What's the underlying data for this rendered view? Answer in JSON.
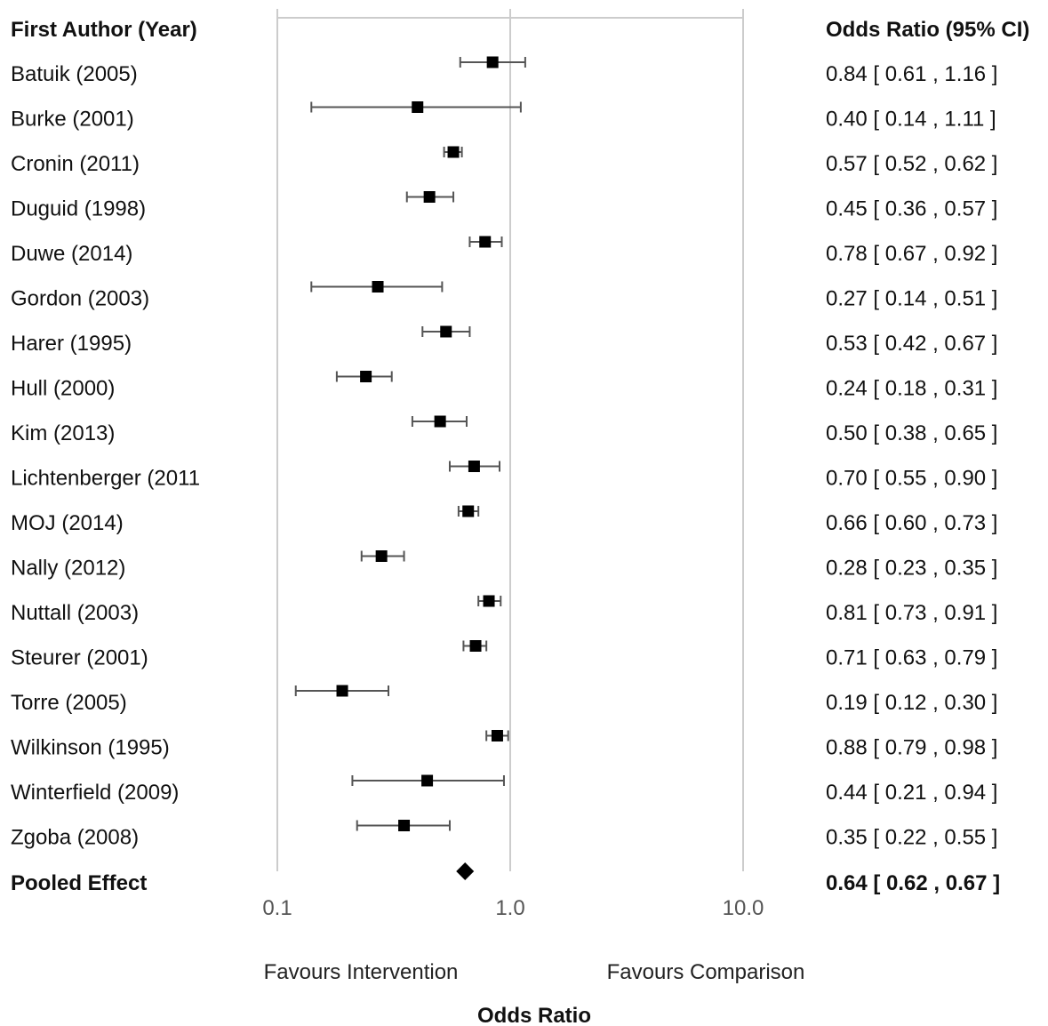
{
  "chart_data": {
    "type": "forest",
    "title": "",
    "xlabel": "Odds Ratio",
    "x_scale": "log",
    "xlim": [
      0.1,
      10.0
    ],
    "x_ticks": [
      "0.1",
      "1.0",
      "10.0"
    ],
    "reference_line": 1.0,
    "left_header": "First Author (Year)",
    "right_header": "Odds Ratio (95% CI)",
    "favours_left": "Favours Intervention",
    "favours_right": "Favours Comparison",
    "studies": [
      {
        "label": "Batuik (2005)",
        "or": 0.84,
        "lo": 0.61,
        "hi": 1.16,
        "ci_text": "0.84 [ 0.61 , 1.16 ]"
      },
      {
        "label": "Burke (2001)",
        "or": 0.4,
        "lo": 0.14,
        "hi": 1.11,
        "ci_text": "0.40 [ 0.14 , 1.11 ]"
      },
      {
        "label": "Cronin (2011)",
        "or": 0.57,
        "lo": 0.52,
        "hi": 0.62,
        "ci_text": "0.57 [ 0.52 , 0.62 ]"
      },
      {
        "label": "Duguid (1998)",
        "or": 0.45,
        "lo": 0.36,
        "hi": 0.57,
        "ci_text": "0.45 [ 0.36 , 0.57 ]"
      },
      {
        "label": "Duwe (2014)",
        "or": 0.78,
        "lo": 0.67,
        "hi": 0.92,
        "ci_text": "0.78 [ 0.67 , 0.92 ]"
      },
      {
        "label": "Gordon (2003)",
        "or": 0.27,
        "lo": 0.14,
        "hi": 0.51,
        "ci_text": "0.27 [ 0.14 , 0.51 ]"
      },
      {
        "label": "Harer (1995)",
        "or": 0.53,
        "lo": 0.42,
        "hi": 0.67,
        "ci_text": "0.53 [ 0.42 , 0.67 ]"
      },
      {
        "label": "Hull (2000)",
        "or": 0.24,
        "lo": 0.18,
        "hi": 0.31,
        "ci_text": "0.24 [ 0.18 , 0.31 ]"
      },
      {
        "label": "Kim (2013)",
        "or": 0.5,
        "lo": 0.38,
        "hi": 0.65,
        "ci_text": "0.50 [ 0.38 , 0.65 ]"
      },
      {
        "label": "Lichtenberger (2011",
        "or": 0.7,
        "lo": 0.55,
        "hi": 0.9,
        "ci_text": "0.70 [ 0.55 , 0.90 ]"
      },
      {
        "label": "MOJ (2014)",
        "or": 0.66,
        "lo": 0.6,
        "hi": 0.73,
        "ci_text": "0.66 [ 0.60 , 0.73 ]"
      },
      {
        "label": "Nally (2012)",
        "or": 0.28,
        "lo": 0.23,
        "hi": 0.35,
        "ci_text": "0.28 [ 0.23 , 0.35 ]"
      },
      {
        "label": "Nuttall (2003)",
        "or": 0.81,
        "lo": 0.73,
        "hi": 0.91,
        "ci_text": "0.81 [ 0.73 , 0.91 ]"
      },
      {
        "label": "Steurer (2001)",
        "or": 0.71,
        "lo": 0.63,
        "hi": 0.79,
        "ci_text": "0.71 [ 0.63 , 0.79 ]"
      },
      {
        "label": "Torre (2005)",
        "or": 0.19,
        "lo": 0.12,
        "hi": 0.3,
        "ci_text": "0.19 [ 0.12 , 0.30 ]"
      },
      {
        "label": "Wilkinson (1995)",
        "or": 0.88,
        "lo": 0.79,
        "hi": 0.98,
        "ci_text": "0.88 [ 0.79 , 0.98 ]"
      },
      {
        "label": "Winterfield (2009)",
        "or": 0.44,
        "lo": 0.21,
        "hi": 0.94,
        "ci_text": "0.44 [ 0.21 , 0.94 ]"
      },
      {
        "label": "Zgoba (2008)",
        "or": 0.35,
        "lo": 0.22,
        "hi": 0.55,
        "ci_text": "0.35 [ 0.22 , 0.55 ]"
      }
    ],
    "pooled": {
      "label": "Pooled Effect",
      "or": 0.64,
      "lo": 0.62,
      "hi": 0.67,
      "ci_text": "0.64 [ 0.62 , 0.67 ]"
    },
    "grid": false,
    "colors": {
      "marker": "#000000",
      "ci_line": "#555555",
      "axis": "#cccccc"
    }
  }
}
